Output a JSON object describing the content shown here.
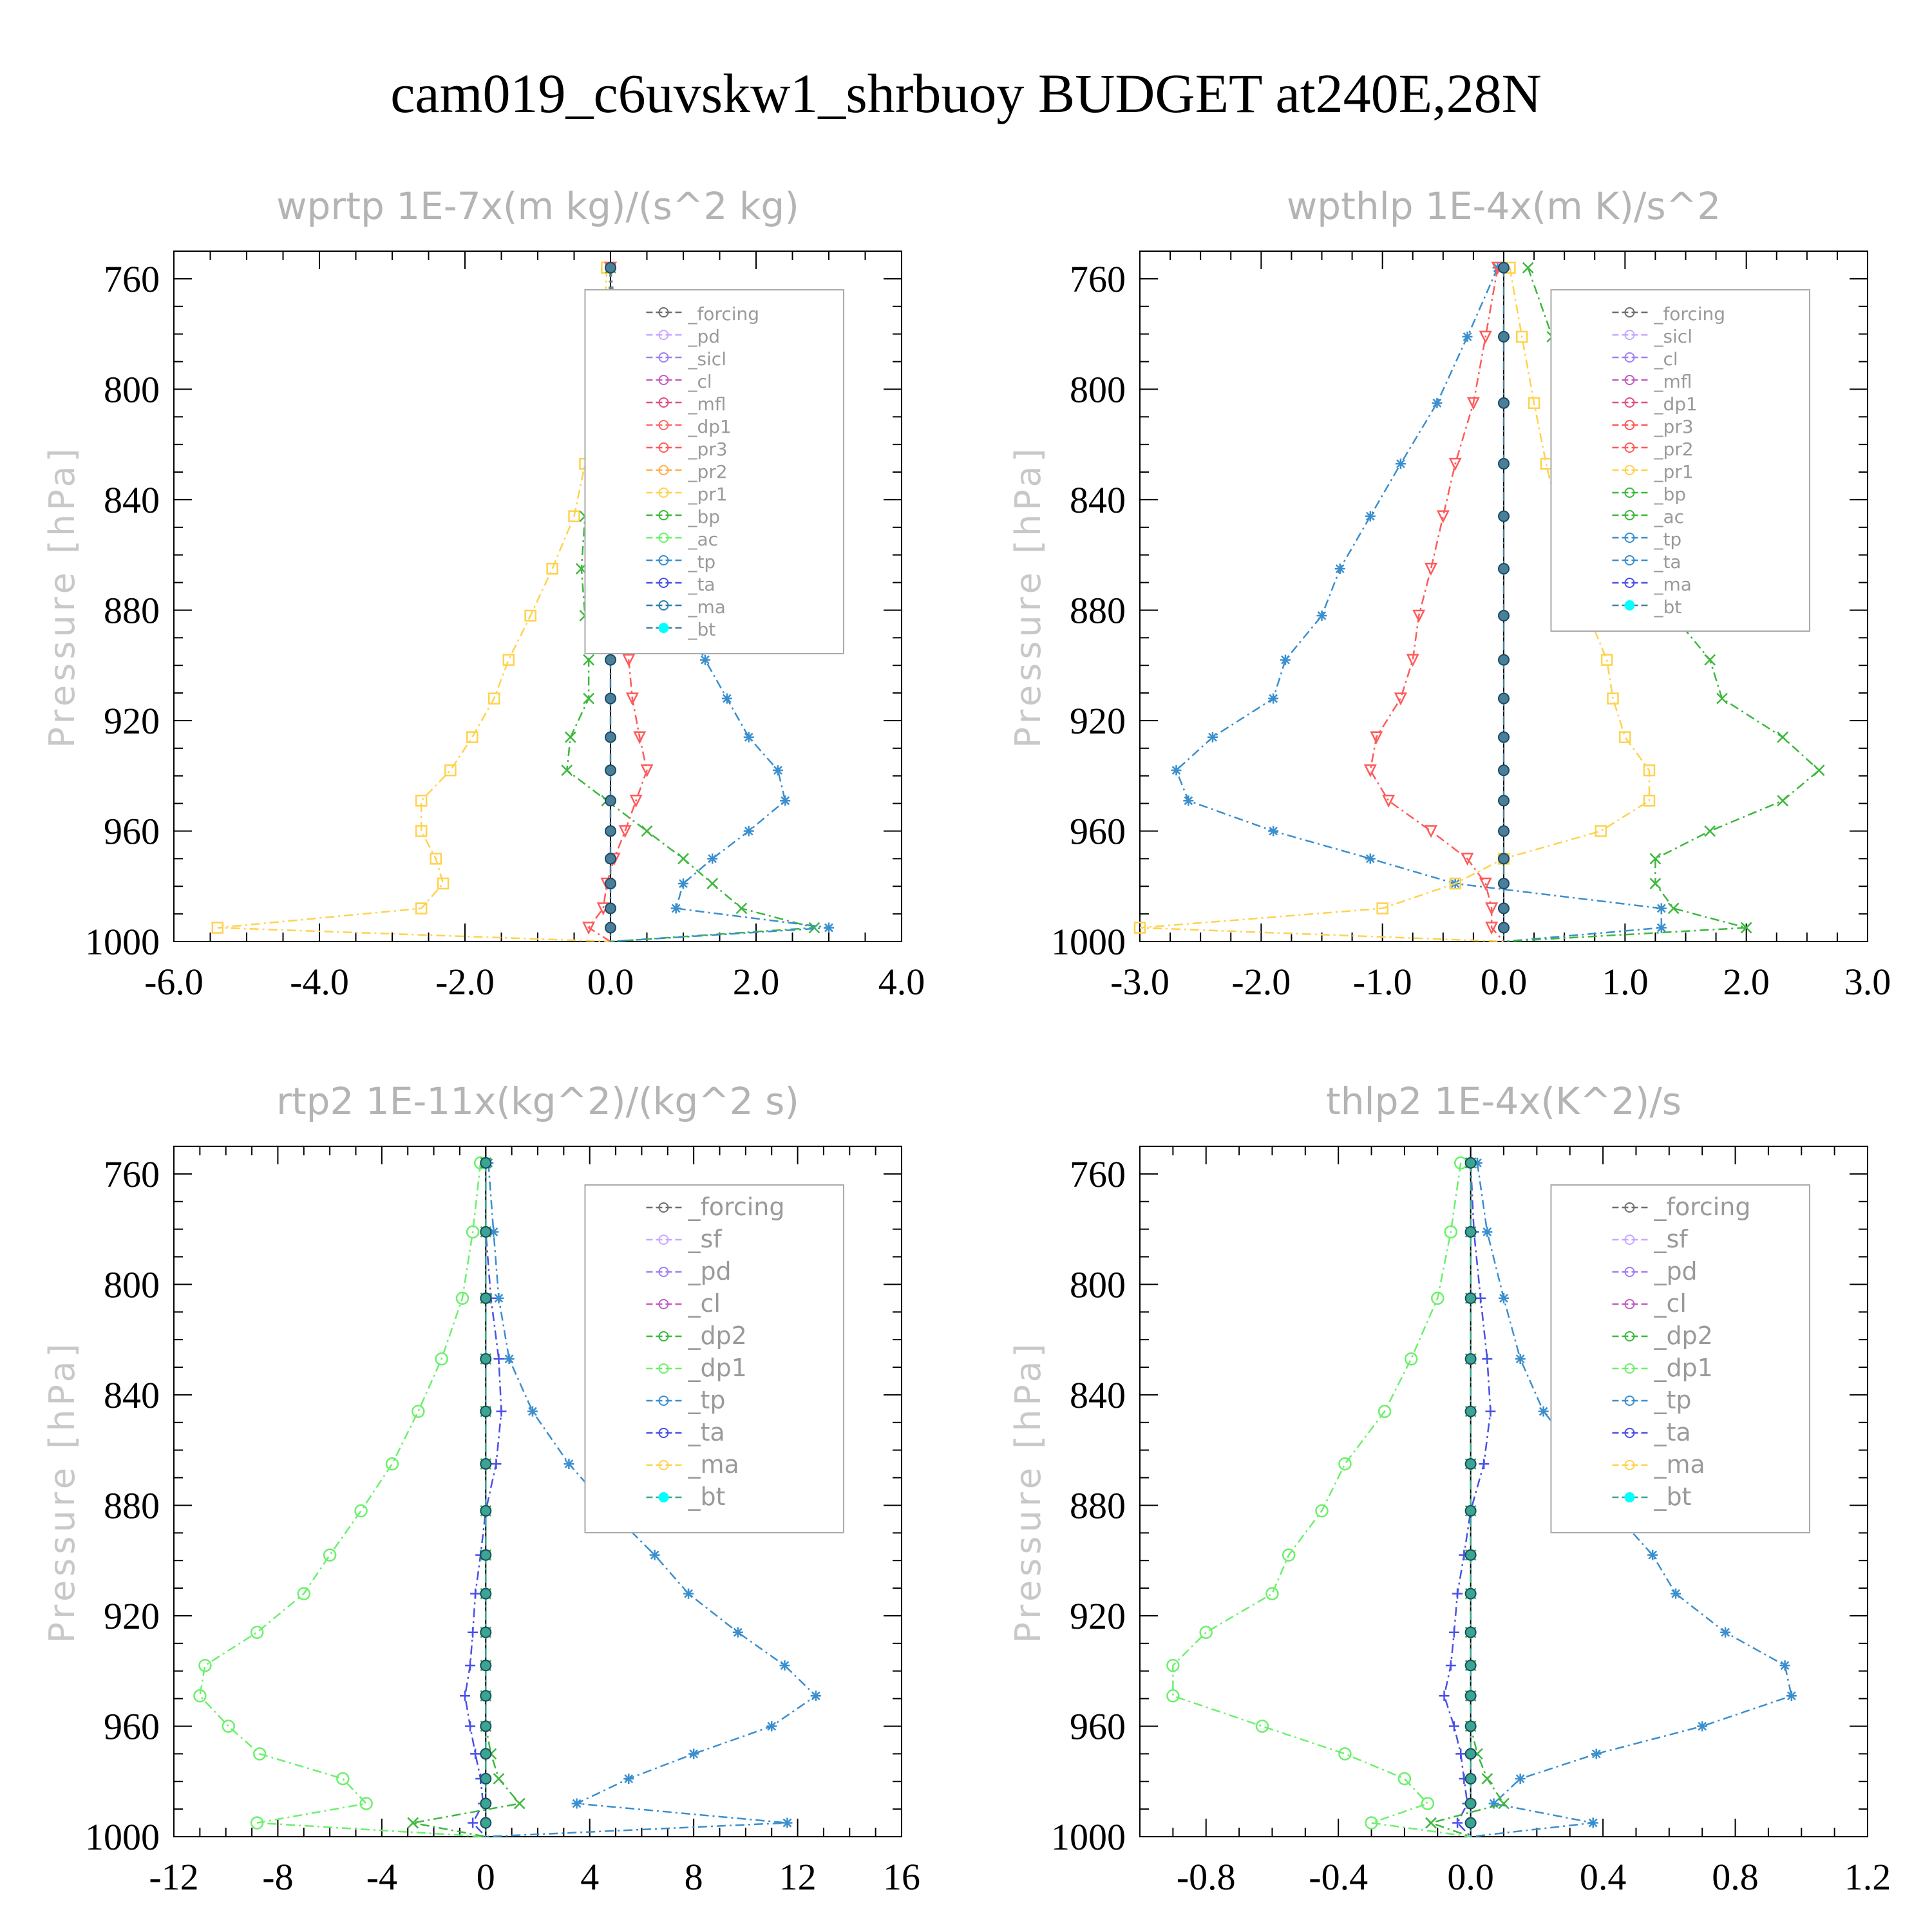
{
  "title": "cam019_c6uvskw1_shrbuoy  BUDGET at240E,28N",
  "chart_data": [
    {
      "type": "line",
      "title": "wprtp   1E-7x(m kg)/(s^2 kg)",
      "ylabel": "Pressure [hPa]",
      "ylim": [
        1000,
        750
      ],
      "yticks": [
        "760",
        "800",
        "840",
        "880",
        "920",
        "960",
        "1000"
      ],
      "xlim": [
        -6.0,
        4.0
      ],
      "xticks": [
        "-6.0",
        "-4.0",
        "-2.0",
        "0.0",
        "2.0",
        "4.0"
      ],
      "levels": [
        756,
        781,
        805,
        827,
        846,
        865,
        882,
        898,
        912,
        926,
        938,
        949,
        960,
        970,
        979,
        988,
        995,
        1000
      ],
      "legend": [
        "_forcing",
        "_pd",
        "_sicl",
        "_cl",
        "_mfl",
        "_dp1",
        "_pr3",
        "_pr2",
        "_pr1",
        "_bp",
        "_ac",
        "_tp",
        "_ta",
        "_ma",
        "_bt"
      ],
      "series": [
        {
          "name": "_pr1",
          "color": "#ffd24d",
          "marker": "square",
          "values": [
            -0.05,
            -0.1,
            -0.2,
            -0.35,
            -0.5,
            -0.8,
            -1.1,
            -1.4,
            -1.6,
            -1.9,
            -2.2,
            -2.6,
            -2.6,
            -2.4,
            -2.3,
            -2.6,
            -5.4,
            0
          ]
        },
        {
          "name": "_bp",
          "color": "#3cb83c",
          "marker": "x",
          "values": [
            0,
            -0.05,
            -0.1,
            -0.25,
            -0.35,
            -0.4,
            -0.35,
            -0.3,
            -0.3,
            -0.55,
            -0.6,
            -0.05,
            0.5,
            1.0,
            1.4,
            1.8,
            2.8,
            0
          ]
        },
        {
          "name": "_tp",
          "color": "#3a8fcf",
          "marker": "star",
          "values": [
            0,
            0.1,
            0.2,
            0.35,
            0.6,
            0.8,
            1.0,
            1.3,
            1.6,
            1.9,
            2.3,
            2.4,
            1.9,
            1.4,
            1.0,
            0.9,
            3.0,
            0
          ]
        },
        {
          "name": "_pr3",
          "color": "#ff5a5a",
          "marker": "triangle-down",
          "values": [
            0,
            0.05,
            0.1,
            0.15,
            0.2,
            0.2,
            0.2,
            0.25,
            0.3,
            0.4,
            0.5,
            0.35,
            0.2,
            0.05,
            -0.05,
            -0.1,
            -0.3,
            0
          ]
        },
        {
          "name": "_bt",
          "color": "#4a7f9a",
          "marker": "dot",
          "values": [
            0,
            0,
            0,
            0,
            0,
            0,
            0,
            0,
            0,
            0,
            0,
            0,
            0,
            0,
            0,
            0,
            0,
            0
          ]
        }
      ]
    },
    {
      "type": "line",
      "title": "wpthlp   1E-4x(m K)/s^2",
      "ylabel": "Pressure [hPa]",
      "ylim": [
        1000,
        750
      ],
      "yticks": [
        "760",
        "800",
        "840",
        "880",
        "920",
        "960",
        "1000"
      ],
      "xlim": [
        -3.0,
        3.0
      ],
      "xticks": [
        "-3.0",
        "-2.0",
        "-1.0",
        "0.0",
        "1.0",
        "2.0",
        "3.0"
      ],
      "levels": [
        756,
        781,
        805,
        827,
        846,
        865,
        882,
        898,
        912,
        926,
        938,
        949,
        960,
        970,
        979,
        988,
        995,
        1000
      ],
      "legend": [
        "_forcing",
        "_sicl",
        "_cl",
        "_mfl",
        "_dp1",
        "_pr3",
        "_pr2",
        "_pr1",
        "_bp",
        "_ac",
        "_tp",
        "_ta",
        "_ma",
        "_bt"
      ],
      "series": [
        {
          "name": "_tp",
          "color": "#3a8fcf",
          "marker": "star",
          "values": [
            -0.05,
            -0.3,
            -0.55,
            -0.85,
            -1.1,
            -1.35,
            -1.5,
            -1.8,
            -1.9,
            -2.4,
            -2.7,
            -2.6,
            -1.9,
            -1.1,
            -0.4,
            1.3,
            1.3,
            0
          ]
        },
        {
          "name": "_pr3",
          "color": "#ff5a5a",
          "marker": "triangle-down",
          "values": [
            -0.05,
            -0.15,
            -0.25,
            -0.4,
            -0.5,
            -0.6,
            -0.7,
            -0.75,
            -0.85,
            -1.05,
            -1.1,
            -0.95,
            -0.6,
            -0.3,
            -0.15,
            -0.1,
            -0.1,
            0
          ]
        },
        {
          "name": "_pr1",
          "color": "#ffd24d",
          "marker": "square",
          "values": [
            0.05,
            0.15,
            0.25,
            0.35,
            0.45,
            0.6,
            0.7,
            0.85,
            0.9,
            1.0,
            1.2,
            1.2,
            0.8,
            0.0,
            -0.4,
            -1.0,
            -3.0,
            0
          ]
        },
        {
          "name": "_bp",
          "color": "#3cb83c",
          "marker": "x",
          "values": [
            0.2,
            0.4,
            0.6,
            0.8,
            1.0,
            1.2,
            1.4,
            1.7,
            1.8,
            2.3,
            2.6,
            2.3,
            1.7,
            1.25,
            1.25,
            1.4,
            2.0,
            0
          ]
        },
        {
          "name": "_bt",
          "color": "#4a7f9a",
          "marker": "dot",
          "values": [
            0,
            0,
            0,
            0,
            0,
            0,
            0,
            0,
            0,
            0,
            0,
            0,
            0,
            0,
            0,
            0,
            0,
            0
          ]
        }
      ]
    },
    {
      "type": "line",
      "title": "rtp2   1E-11x(kg^2)/(kg^2 s)",
      "ylabel": "Pressure [hPa]",
      "ylim": [
        1000,
        750
      ],
      "yticks": [
        "760",
        "800",
        "840",
        "880",
        "920",
        "960",
        "1000"
      ],
      "xlim": [
        -12,
        16
      ],
      "xticks": [
        "-12",
        "-8",
        "-4",
        "0",
        "4",
        "8",
        "12",
        "16"
      ],
      "levels": [
        756,
        781,
        805,
        827,
        846,
        865,
        882,
        898,
        912,
        926,
        938,
        949,
        960,
        970,
        979,
        988,
        995,
        1000
      ],
      "legend": [
        "_forcing",
        "_sf",
        "_pd",
        "_cl",
        "_dp2",
        "_dp1",
        "_tp",
        "_ta",
        "_ma",
        "_bt"
      ],
      "series": [
        {
          "name": "_dp1",
          "color": "#6cf06c",
          "marker": "circle",
          "values": [
            -0.2,
            -0.5,
            -0.9,
            -1.7,
            -2.6,
            -3.6,
            -4.8,
            -6.0,
            -7.0,
            -8.8,
            -10.8,
            -11.0,
            -9.9,
            -8.7,
            -5.5,
            -4.6,
            -8.8,
            0
          ]
        },
        {
          "name": "_tp",
          "color": "#3a8fcf",
          "marker": "star",
          "values": [
            0.1,
            0.3,
            0.5,
            0.9,
            1.8,
            3.2,
            4.8,
            6.5,
            7.8,
            9.7,
            11.5,
            12.7,
            11.0,
            8.0,
            5.5,
            3.5,
            11.6,
            0
          ]
        },
        {
          "name": "_ta",
          "color": "#4a50e8",
          "marker": "plus",
          "values": [
            0,
            0,
            0.2,
            0.5,
            0.6,
            0.4,
            0.0,
            -0.2,
            -0.4,
            -0.5,
            -0.6,
            -0.8,
            -0.6,
            -0.4,
            -0.2,
            -0.1,
            -0.5,
            0
          ]
        },
        {
          "name": "_dp2",
          "color": "#3cb83c",
          "marker": "x",
          "values": [
            0,
            0,
            0,
            0,
            0,
            0,
            0,
            0,
            0,
            0,
            0,
            0,
            0,
            0.2,
            0.5,
            1.3,
            -2.8,
            0
          ]
        },
        {
          "name": "_bt",
          "color": "#3aa590",
          "marker": "dot",
          "values": [
            0,
            0,
            0,
            0,
            0,
            0,
            0,
            0,
            0,
            0,
            0,
            0,
            0,
            0,
            0,
            0,
            0,
            0
          ]
        }
      ]
    },
    {
      "type": "line",
      "title": "thlp2   1E-4x(K^2)/s",
      "ylabel": "Pressure [hPa]",
      "ylim": [
        1000,
        750
      ],
      "yticks": [
        "760",
        "800",
        "840",
        "880",
        "920",
        "960",
        "1000"
      ],
      "xlim": [
        -1.0,
        1.2
      ],
      "xticks": [
        "-0.8",
        "-0.4",
        "0.0",
        "0.4",
        "0.8",
        "1.2"
      ],
      "levels": [
        756,
        781,
        805,
        827,
        846,
        865,
        882,
        898,
        912,
        926,
        938,
        949,
        960,
        970,
        979,
        988,
        995,
        1000
      ],
      "legend": [
        "_forcing",
        "_sf",
        "_pd",
        "_cl",
        "_dp2",
        "_dp1",
        "_tp",
        "_ta",
        "_ma",
        "_bt"
      ],
      "series": [
        {
          "name": "_dp1",
          "color": "#6cf06c",
          "marker": "circle",
          "values": [
            -0.03,
            -0.06,
            -0.1,
            -0.18,
            -0.26,
            -0.38,
            -0.45,
            -0.55,
            -0.6,
            -0.8,
            -0.9,
            -0.9,
            -0.63,
            -0.38,
            -0.2,
            -0.13,
            -0.3,
            0
          ]
        },
        {
          "name": "_tp",
          "color": "#3a8fcf",
          "marker": "star",
          "values": [
            0.02,
            0.05,
            0.1,
            0.15,
            0.22,
            0.35,
            0.43,
            0.55,
            0.62,
            0.77,
            0.95,
            0.97,
            0.7,
            0.38,
            0.15,
            0.07,
            0.37,
            0
          ]
        },
        {
          "name": "_ta",
          "color": "#4a50e8",
          "marker": "plus",
          "values": [
            0,
            0.01,
            0.03,
            0.05,
            0.06,
            0.04,
            0,
            -0.02,
            -0.04,
            -0.05,
            -0.06,
            -0.08,
            -0.05,
            -0.03,
            -0.02,
            -0.01,
            -0.04,
            0
          ]
        },
        {
          "name": "_dp2",
          "color": "#3cb83c",
          "marker": "x",
          "values": [
            0,
            0,
            0,
            0,
            0,
            0,
            0,
            0,
            0,
            0,
            0,
            0,
            0,
            0.02,
            0.05,
            0.1,
            -0.12,
            0
          ]
        },
        {
          "name": "_bt",
          "color": "#3aa590",
          "marker": "dot",
          "values": [
            0,
            0,
            0,
            0,
            0,
            0,
            0,
            0,
            0,
            0,
            0,
            0,
            0,
            0,
            0,
            0,
            0,
            0
          ]
        }
      ]
    }
  ]
}
